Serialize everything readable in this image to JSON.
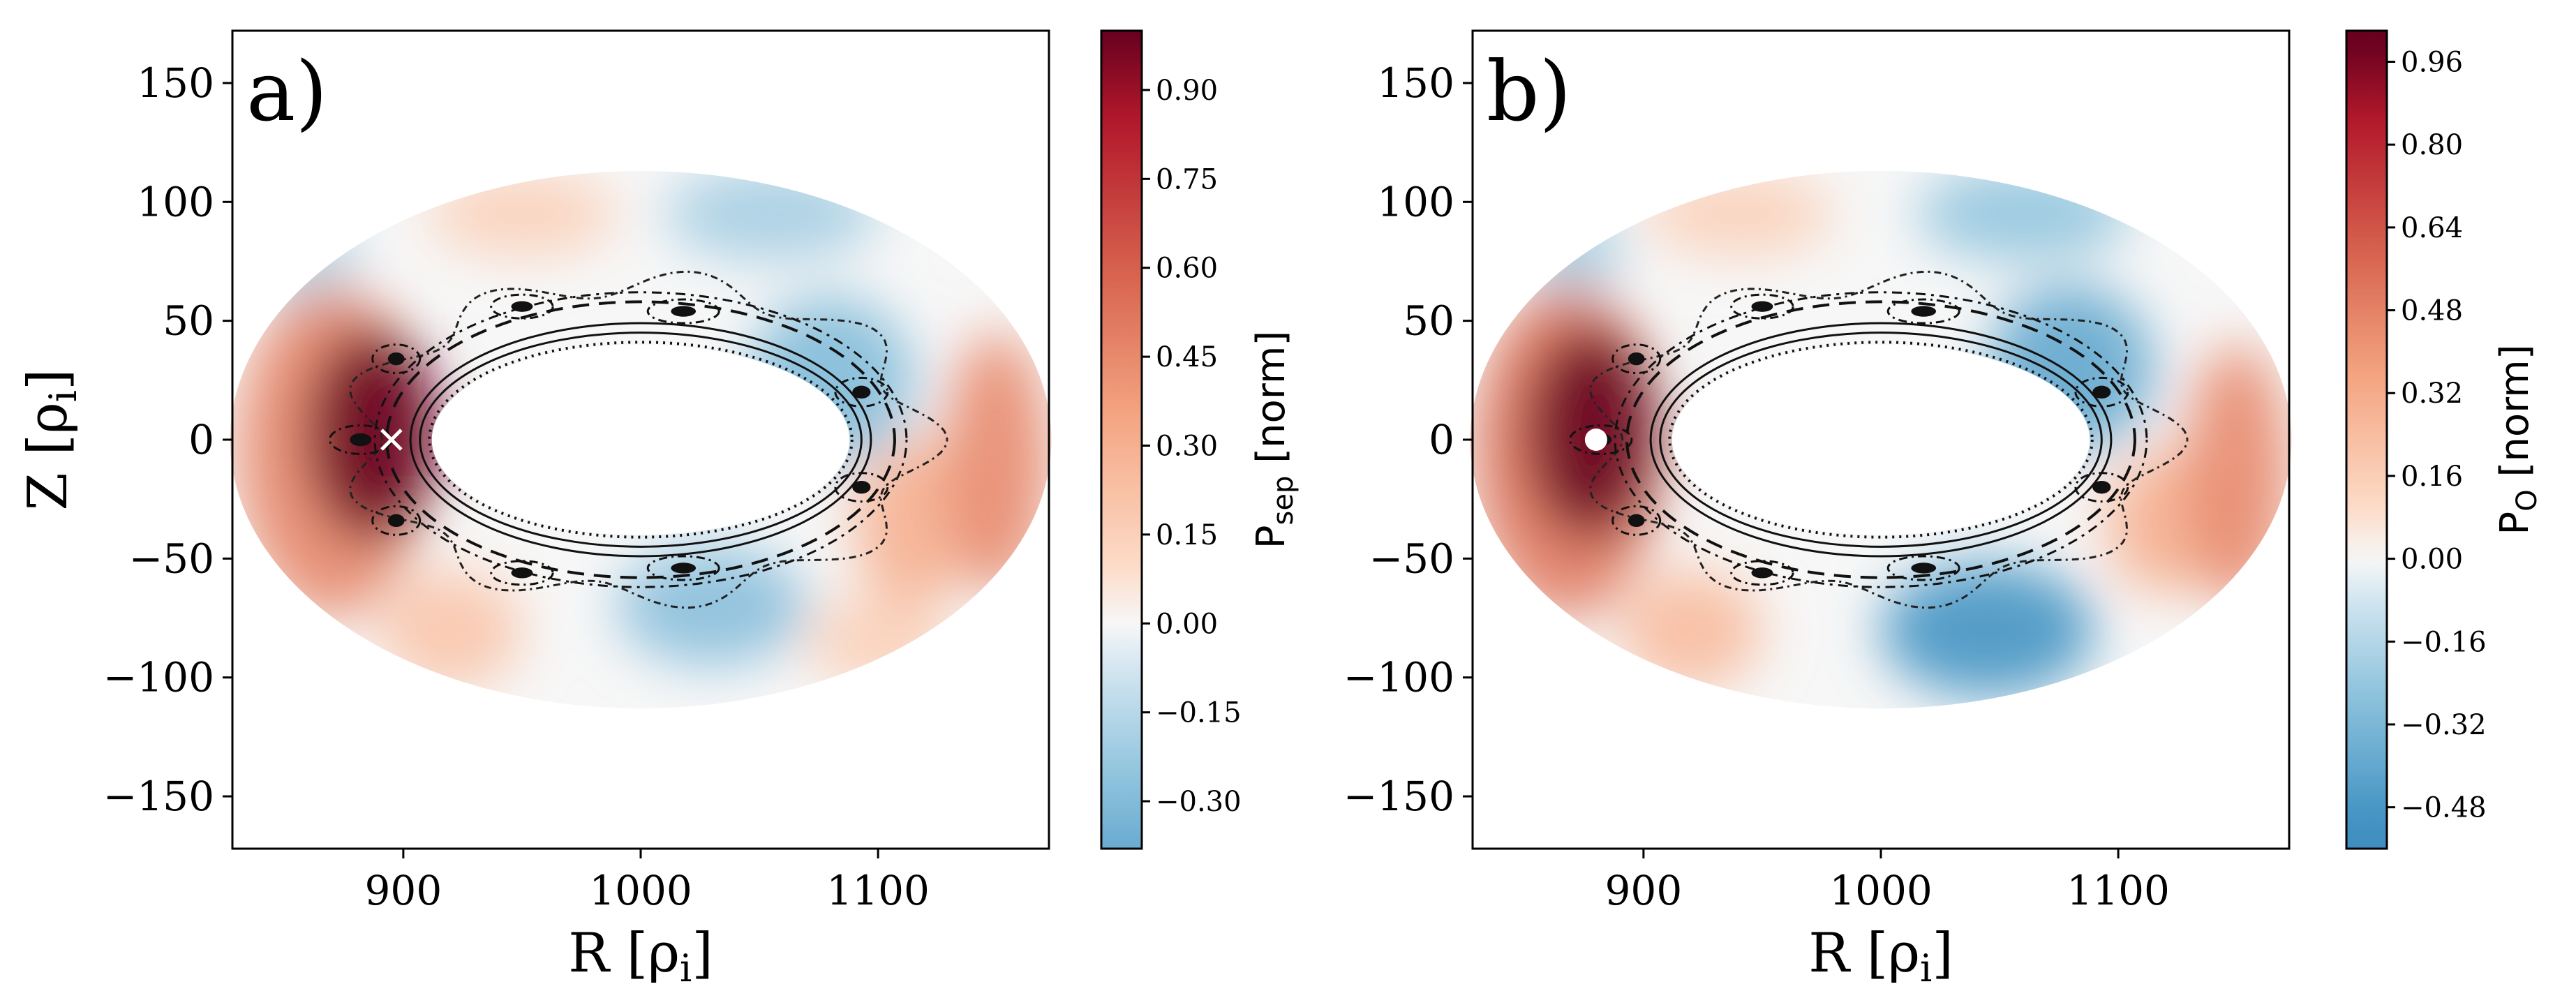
{
  "chart_data": [
    {
      "type": "heatmap",
      "panel_label": "a)",
      "xlabel": "R [ρ",
      "xlabel_sub": "i",
      "xlabel_end": "]",
      "ylabel": "Z [ρ",
      "ylabel_sub": "i",
      "ylabel_end": "]",
      "xlim": [
        828,
        1172
      ],
      "ylim": [
        -172,
        172
      ],
      "xticks": [
        900,
        1000,
        1100
      ],
      "xtick_labels": [
        "900",
        "1000",
        "1100"
      ],
      "yticks": [
        150,
        100,
        50,
        0,
        -50,
        -100,
        -150
      ],
      "ytick_labels": [
        "150",
        "100",
        "50",
        "0",
        "−50",
        "−100",
        "−150"
      ],
      "marker": {
        "type": "cross",
        "x": 895,
        "y": 0,
        "color": "#ffffff"
      },
      "colorbar": {
        "label": "P",
        "label_sub": "sep",
        "label_unit": "  [norm]",
        "range": [
          -0.38,
          1.0
        ],
        "ticks": [
          0.9,
          0.75,
          0.6,
          0.45,
          0.3,
          0.15,
          0.0,
          -0.15,
          -0.3
        ],
        "tick_labels": [
          "0.90",
          "0.75",
          "0.60",
          "0.45",
          "0.30",
          "0.15",
          "0.00",
          "−0.15",
          "−0.30"
        ]
      },
      "field_blobs": [
        {
          "x": 887,
          "y": 2,
          "rx": 28,
          "ry": 45,
          "v": 1.0
        },
        {
          "x": 870,
          "y": -5,
          "rx": 40,
          "ry": 70,
          "v": 0.45
        },
        {
          "x": 1150,
          "y": -10,
          "rx": 22,
          "ry": 55,
          "v": 0.45
        },
        {
          "x": 1115,
          "y": -35,
          "rx": 25,
          "ry": 35,
          "v": 0.3
        },
        {
          "x": 1080,
          "y": 25,
          "rx": 35,
          "ry": 35,
          "v": -0.3
        },
        {
          "x": 1030,
          "y": -70,
          "rx": 40,
          "ry": 25,
          "v": -0.28
        },
        {
          "x": 1055,
          "y": 95,
          "rx": 45,
          "ry": 20,
          "v": -0.2
        },
        {
          "x": 920,
          "y": -80,
          "rx": 30,
          "ry": 25,
          "v": 0.2
        },
        {
          "x": 950,
          "y": 95,
          "rx": 40,
          "ry": 18,
          "v": 0.15
        },
        {
          "x": 1100,
          "y": -85,
          "rx": 30,
          "ry": 20,
          "v": 0.15
        },
        {
          "x": 860,
          "y": 75,
          "rx": 20,
          "ry": 25,
          "v": -0.15
        }
      ]
    },
    {
      "type": "heatmap",
      "panel_label": "b)",
      "xlabel": "R [ρ",
      "xlabel_sub": "i",
      "xlabel_end": "]",
      "ylabel": "",
      "ylabel_sub": "",
      "ylabel_end": "",
      "xlim": [
        828,
        1172
      ],
      "ylim": [
        -172,
        172
      ],
      "xticks": [
        900,
        1000,
        1100
      ],
      "xtick_labels": [
        "900",
        "1000",
        "1100"
      ],
      "yticks": [
        150,
        100,
        50,
        0,
        -50,
        -100,
        -150
      ],
      "ytick_labels": [
        "150",
        "100",
        "50",
        "0",
        "−50",
        "−100",
        "−150"
      ],
      "marker": {
        "type": "dot",
        "x": 880,
        "y": 0,
        "color": "#ffffff"
      },
      "colorbar": {
        "label": "P",
        "label_sub": "O",
        "label_unit": "  [norm]",
        "range": [
          -0.56,
          1.02
        ],
        "ticks": [
          0.96,
          0.8,
          0.64,
          0.48,
          0.32,
          0.16,
          0.0,
          -0.16,
          -0.32,
          -0.48
        ],
        "tick_labels": [
          "0.96",
          "0.80",
          "0.64",
          "0.48",
          "0.32",
          "0.16",
          "0.00",
          "−0.16",
          "−0.32",
          "−0.48"
        ]
      },
      "field_blobs": [
        {
          "x": 878,
          "y": 3,
          "rx": 28,
          "ry": 45,
          "v": 1.0
        },
        {
          "x": 868,
          "y": -5,
          "rx": 40,
          "ry": 70,
          "v": 0.5
        },
        {
          "x": 1150,
          "y": -15,
          "rx": 22,
          "ry": 55,
          "v": 0.45
        },
        {
          "x": 1120,
          "y": -35,
          "rx": 25,
          "ry": 30,
          "v": 0.3
        },
        {
          "x": 1045,
          "y": -80,
          "rx": 45,
          "ry": 28,
          "v": -0.5
        },
        {
          "x": 1080,
          "y": 30,
          "rx": 35,
          "ry": 35,
          "v": -0.4
        },
        {
          "x": 1060,
          "y": 95,
          "rx": 45,
          "ry": 20,
          "v": -0.25
        },
        {
          "x": 920,
          "y": -80,
          "rx": 30,
          "ry": 25,
          "v": 0.25
        },
        {
          "x": 940,
          "y": 95,
          "rx": 40,
          "ry": 18,
          "v": 0.15
        },
        {
          "x": 870,
          "y": 80,
          "rx": 20,
          "ry": 20,
          "v": -0.2
        }
      ]
    }
  ],
  "colormap": {
    "name": "RdBu_r",
    "stops": [
      {
        "v": -1.0,
        "color": "#2166ac"
      },
      {
        "v": -0.5,
        "color": "#4393c3"
      },
      {
        "v": -0.25,
        "color": "#92c5de"
      },
      {
        "v": -0.08,
        "color": "#d1e5f0"
      },
      {
        "v": 0.0,
        "color": "#f7f7f7"
      },
      {
        "v": 0.1,
        "color": "#fddbc7"
      },
      {
        "v": 0.35,
        "color": "#f4a582"
      },
      {
        "v": 0.6,
        "color": "#d6604d"
      },
      {
        "v": 0.85,
        "color": "#b2182b"
      },
      {
        "v": 1.0,
        "color": "#67001f"
      }
    ]
  },
  "domain": {
    "center": [
      1000,
      0
    ],
    "outer_axes": [
      173,
      113
    ],
    "inner_axes": [
      88,
      40
    ],
    "outer_fill": "#f7f7f7"
  },
  "islands": [
    {
      "x": 882,
      "y": 0,
      "rx": 13,
      "ry": 6
    },
    {
      "x": 897,
      "y": 34,
      "rx": 10,
      "ry": 6
    },
    {
      "x": 897,
      "y": -34,
      "rx": 10,
      "ry": 6
    },
    {
      "x": 950,
      "y": 56,
      "rx": 13,
      "ry": 5
    },
    {
      "x": 950,
      "y": -56,
      "rx": 13,
      "ry": 5
    },
    {
      "x": 1018,
      "y": 54,
      "rx": 15,
      "ry": 5
    },
    {
      "x": 1018,
      "y": -54,
      "rx": 15,
      "ry": 5
    },
    {
      "x": 1093,
      "y": 20,
      "rx": 11,
      "ry": 6
    },
    {
      "x": 1093,
      "y": -20,
      "rx": 11,
      "ry": 6
    }
  ]
}
